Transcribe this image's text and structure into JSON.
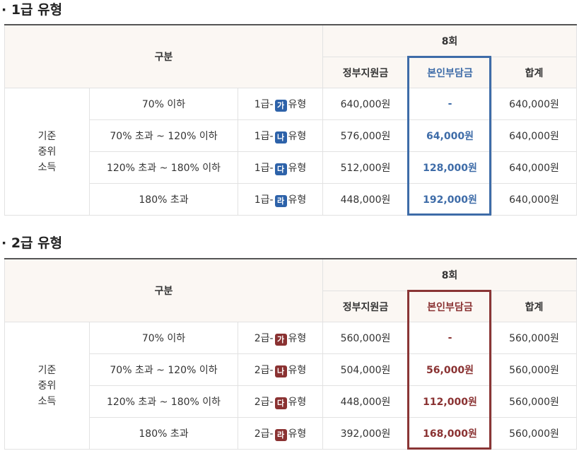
{
  "section1": {
    "title": "· 1급 유형",
    "header": {
      "category": "구분",
      "sessions": "8회",
      "gov": "정부지원금",
      "self": "본인부담금",
      "total": "합계"
    },
    "row_group": "기준\n중위\n소득",
    "rows": [
      {
        "income": "70% 이하",
        "grade": "1급-",
        "badge": "가",
        "type": "유형",
        "gov": "640,000원",
        "self": "-",
        "total": "640,000원"
      },
      {
        "income": "70% 초과 ~ 120% 이하",
        "grade": "1급-",
        "badge": "나",
        "type": "유형",
        "gov": "576,000원",
        "self": "64,000원",
        "total": "640,000원"
      },
      {
        "income": "120% 초과 ~ 180% 이하",
        "grade": "1급-",
        "badge": "다",
        "type": "유형",
        "gov": "512,000원",
        "self": "128,000원",
        "total": "640,000원"
      },
      {
        "income": "180% 초과",
        "grade": "1급-",
        "badge": "라",
        "type": "유형",
        "gov": "448,000원",
        "self": "192,000원",
        "total": "640,000원"
      }
    ],
    "accent_color": "#3e6ca8"
  },
  "section2": {
    "title": "· 2급 유형",
    "header": {
      "category": "구분",
      "sessions": "8회",
      "gov": "정부지원금",
      "self": "본인부담금",
      "total": "합계"
    },
    "row_group": "기준\n중위\n소득",
    "rows": [
      {
        "income": "70% 이하",
        "grade": "2급-",
        "badge": "가",
        "type": "유형",
        "gov": "560,000원",
        "self": "-",
        "total": "560,000원"
      },
      {
        "income": "70% 초과 ~ 120% 이하",
        "grade": "2급-",
        "badge": "나",
        "type": "유형",
        "gov": "504,000원",
        "self": "56,000원",
        "total": "560,000원"
      },
      {
        "income": "120% 초과 ~ 180% 이하",
        "grade": "2급-",
        "badge": "다",
        "type": "유형",
        "gov": "448,000원",
        "self": "112,000원",
        "total": "560,000원"
      },
      {
        "income": "180% 초과",
        "grade": "2급-",
        "badge": "라",
        "type": "유형",
        "gov": "392,000원",
        "self": "168,000원",
        "total": "560,000원"
      }
    ],
    "accent_color": "#8a3232"
  }
}
